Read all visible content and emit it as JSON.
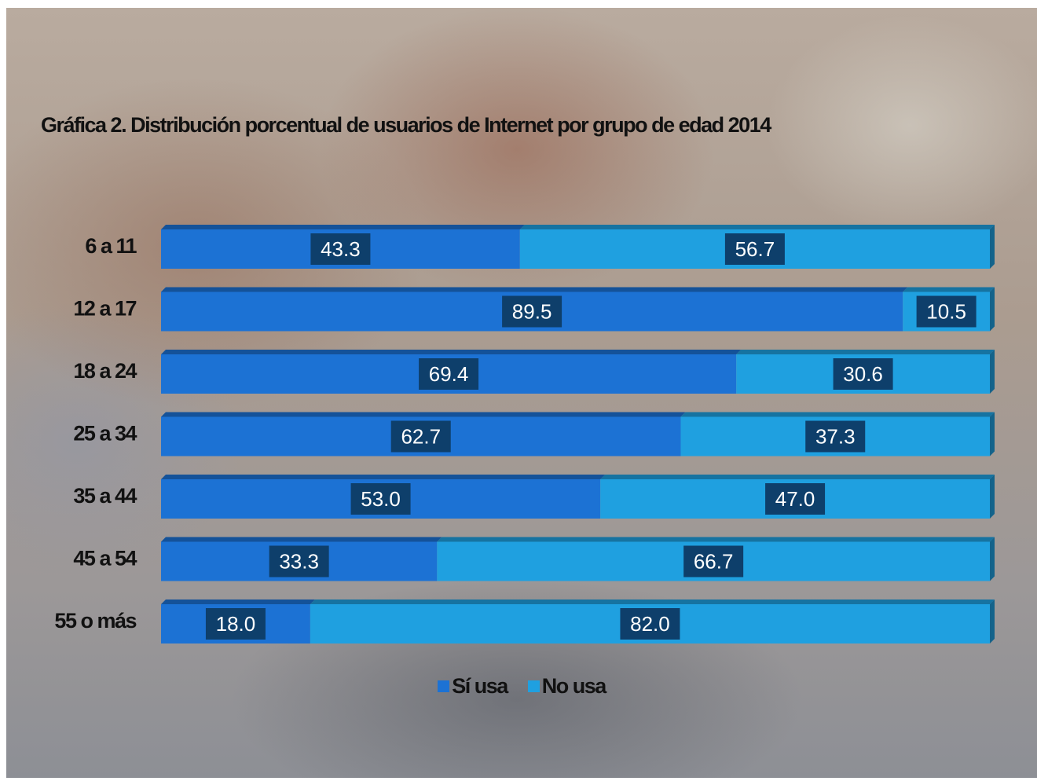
{
  "chart_data": {
    "type": "bar",
    "orientation": "horizontal",
    "stacked": true,
    "title": "Gráfica 2. Distribución porcentual de usuarios de Internet por grupo de edad 2014",
    "categories": [
      "6 a 11",
      "12 a 17",
      "18 a 24",
      "25 a 34",
      "35 a 44",
      "45 a 54",
      "55 o más"
    ],
    "series": [
      {
        "name": "Sí usa",
        "values": [
          43.3,
          89.5,
          69.4,
          62.7,
          53.0,
          33.3,
          18.0
        ],
        "labels": [
          "43.3",
          "89.5",
          "69.4",
          "62.7",
          "53.0",
          "33.3",
          "18.0"
        ],
        "color": "#1c72d4"
      },
      {
        "name": "No usa",
        "values": [
          56.7,
          10.5,
          30.6,
          37.3,
          47.0,
          66.7,
          82.0
        ],
        "labels": [
          "56.7",
          "10.5",
          "30.6",
          "37.3",
          "47.0",
          "66.7",
          "82.0"
        ],
        "color": "#1fa0e0"
      }
    ],
    "xlim": [
      0,
      100
    ],
    "grid": false,
    "legend_position": "bottom"
  },
  "colors": {
    "label_box": "#0e3f6b",
    "text": "#111111"
  }
}
